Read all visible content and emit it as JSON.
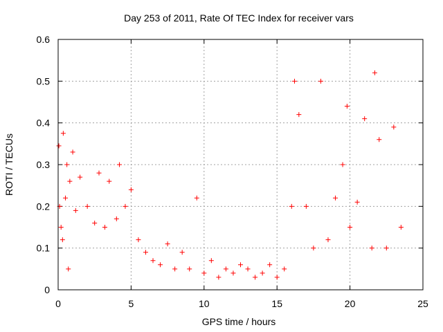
{
  "chart_data": {
    "type": "scatter",
    "title": "Day 253 of 2011, Rate Of TEC Index for receiver vars",
    "xlabel": "GPS time / hours",
    "ylabel": "ROTI / TECUs",
    "xlim": [
      0,
      25
    ],
    "ylim": [
      0,
      0.6
    ],
    "xticks": [
      0,
      5,
      10,
      15,
      20,
      25
    ],
    "xtick_labels": [
      "0",
      "5",
      "10",
      "15",
      "20",
      "25"
    ],
    "yticks": [
      0,
      0.1,
      0.2,
      0.3,
      0.4,
      0.5,
      0.6
    ],
    "ytick_labels": [
      "0",
      "0.1",
      "0.2",
      "0.3",
      "0.4",
      "0.5",
      "0.6"
    ],
    "grid": true,
    "marker": "plus",
    "color": "#ff0000",
    "series": [
      {
        "values_sample": [
          [
            0.05,
            0.345
          ],
          [
            0.1,
            0.2
          ],
          [
            0.2,
            0.15
          ],
          [
            0.3,
            0.12
          ],
          [
            0.35,
            0.375
          ],
          [
            0.5,
            0.22
          ],
          [
            0.6,
            0.3
          ],
          [
            0.7,
            0.05
          ],
          [
            0.8,
            0.26
          ],
          [
            1.0,
            0.33
          ],
          [
            1.2,
            0.19
          ],
          [
            1.5,
            0.27
          ],
          [
            2.0,
            0.2
          ],
          [
            2.5,
            0.16
          ],
          [
            2.8,
            0.28
          ],
          [
            3.2,
            0.15
          ],
          [
            3.5,
            0.26
          ],
          [
            4.0,
            0.17
          ],
          [
            4.2,
            0.3
          ],
          [
            4.6,
            0.2
          ],
          [
            5.0,
            0.24
          ],
          [
            5.5,
            0.12
          ],
          [
            6.0,
            0.09
          ],
          [
            6.5,
            0.07
          ],
          [
            7.0,
            0.06
          ],
          [
            7.5,
            0.11
          ],
          [
            8.0,
            0.05
          ],
          [
            8.5,
            0.09
          ],
          [
            9.0,
            0.05
          ],
          [
            9.5,
            0.22
          ],
          [
            10.0,
            0.04
          ],
          [
            10.5,
            0.07
          ],
          [
            11.0,
            0.03
          ],
          [
            11.5,
            0.05
          ],
          [
            12.0,
            0.04
          ],
          [
            12.5,
            0.06
          ],
          [
            13.0,
            0.05
          ],
          [
            13.5,
            0.03
          ],
          [
            14.0,
            0.04
          ],
          [
            14.5,
            0.06
          ],
          [
            15.0,
            0.03
          ],
          [
            15.5,
            0.05
          ],
          [
            16.0,
            0.2
          ],
          [
            16.2,
            0.5
          ],
          [
            16.5,
            0.42
          ],
          [
            17.0,
            0.2
          ],
          [
            17.5,
            0.1
          ],
          [
            18.0,
            0.5
          ],
          [
            18.5,
            0.12
          ],
          [
            19.0,
            0.22
          ],
          [
            19.5,
            0.3
          ],
          [
            19.8,
            0.44
          ],
          [
            20.0,
            0.15
          ],
          [
            20.5,
            0.21
          ],
          [
            21.0,
            0.41
          ],
          [
            21.5,
            0.1
          ],
          [
            21.7,
            0.52
          ],
          [
            22.0,
            0.36
          ],
          [
            22.5,
            0.1
          ],
          [
            23.0,
            0.39
          ],
          [
            23.5,
            0.15
          ]
        ]
      }
    ]
  }
}
